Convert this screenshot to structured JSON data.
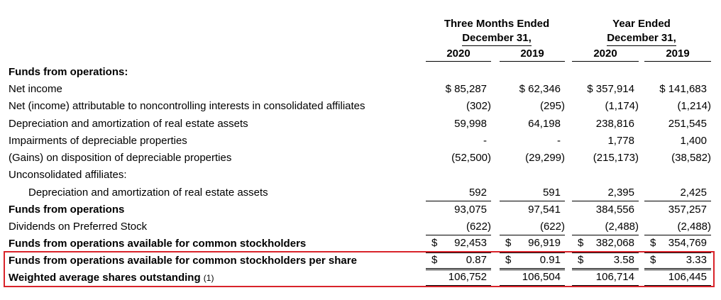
{
  "header": {
    "group1": {
      "line1": "Three Months Ended",
      "line2": "December 31,"
    },
    "group2": {
      "line1": "Year Ended",
      "line2": "December 31,"
    },
    "years": [
      "2020",
      "2019",
      "2020",
      "2019"
    ]
  },
  "rows": [
    {
      "label": "Funds from operations:",
      "values": [
        "",
        "",
        "",
        ""
      ]
    },
    {
      "label": "Net income",
      "values": [
        "$ 85,287",
        "$ 62,346",
        "$ 357,914",
        "$ 141,683"
      ]
    },
    {
      "label": "Net (income) attributable to noncontrolling interests in consolidated affiliates",
      "values": [
        "(302)",
        "(295)",
        "(1,174)",
        "(1,214)"
      ]
    },
    {
      "label": "Depreciation and amortization of real estate assets",
      "values": [
        "59,998",
        "64,198",
        "238,816",
        "251,545"
      ]
    },
    {
      "label": "Impairments of depreciable properties",
      "values": [
        "-",
        "-",
        "1,778",
        "1,400"
      ]
    },
    {
      "label": "(Gains) on disposition of depreciable properties",
      "values": [
        "(52,500)",
        "(29,299)",
        "(215,173)",
        "(38,582)"
      ]
    },
    {
      "label": "Unconsolidated affiliates:",
      "values": [
        "",
        "",
        "",
        ""
      ]
    },
    {
      "label": "Depreciation and amortization of real estate assets",
      "values": [
        "592",
        "591",
        "2,395",
        "2,425"
      ]
    },
    {
      "label": "Funds from operations",
      "values": [
        "93,075",
        "97,541",
        "384,556",
        "357,257"
      ]
    },
    {
      "label": "Dividends on Preferred Stock",
      "values": [
        "(622)",
        "(622)",
        "(2,488)",
        "(2,488)"
      ]
    },
    {
      "label": "Funds from operations available for common stockholders",
      "values": [
        "92,453",
        "96,919",
        "382,068",
        "354,769"
      ],
      "dollar": [
        "$",
        "$",
        "$",
        "$"
      ]
    },
    {
      "label": "Funds from operations available for common stockholders per share",
      "values": [
        "0.87",
        "0.91",
        "3.58",
        "3.33"
      ],
      "dollar": [
        "$",
        "$",
        "$",
        "$"
      ]
    },
    {
      "label": "Weighted average shares outstanding",
      "footnote": "(1)",
      "values": [
        "106,752",
        "106,504",
        "106,714",
        "106,445"
      ]
    }
  ],
  "colors": {
    "highlight": "#d9232a",
    "text": "#000000"
  }
}
